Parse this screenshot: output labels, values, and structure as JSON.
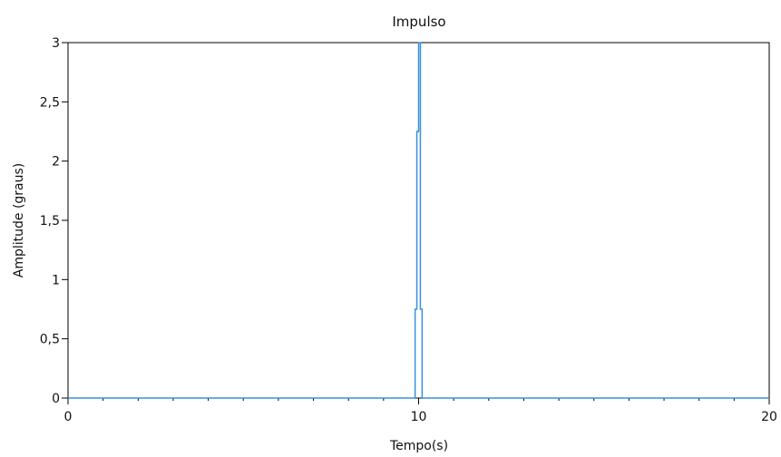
{
  "chart_data": {
    "type": "line",
    "title": "Impulso",
    "xlabel": "Tempo(s)",
    "ylabel": "Amplitude (graus)",
    "xlim": [
      0,
      20
    ],
    "ylim": [
      0,
      3
    ],
    "x_ticks": [
      {
        "value": 0,
        "label": "0"
      },
      {
        "value": 10,
        "label": "10"
      },
      {
        "value": 20,
        "label": "20"
      }
    ],
    "x_minor_ticks": [
      1,
      2,
      3,
      4,
      5,
      6,
      7,
      8,
      9,
      11,
      12,
      13,
      14,
      15,
      16,
      17,
      18,
      19
    ],
    "y_ticks": [
      {
        "value": 0,
        "label": "0"
      },
      {
        "value": 0.5,
        "label": "0,5"
      },
      {
        "value": 1,
        "label": "1"
      },
      {
        "value": 1.5,
        "label": "1,5"
      },
      {
        "value": 2,
        "label": "2"
      },
      {
        "value": 2.5,
        "label": "2,5"
      },
      {
        "value": 3,
        "label": "3"
      }
    ],
    "grid": false,
    "series": [
      {
        "color": "#3b8fdc",
        "x": [
          0,
          9.9,
          9.9,
          9.95,
          9.95,
          10.0,
          10.0,
          10.05,
          10.05,
          10.1,
          10.1,
          20
        ],
        "y": [
          0,
          0,
          0.75,
          0.75,
          2.25,
          2.25,
          3.0,
          3.0,
          0.75,
          0.75,
          0,
          0
        ]
      }
    ],
    "colors": {
      "line": "#3b8fdc",
      "axis": "#000000",
      "background": "#ffffff"
    }
  }
}
